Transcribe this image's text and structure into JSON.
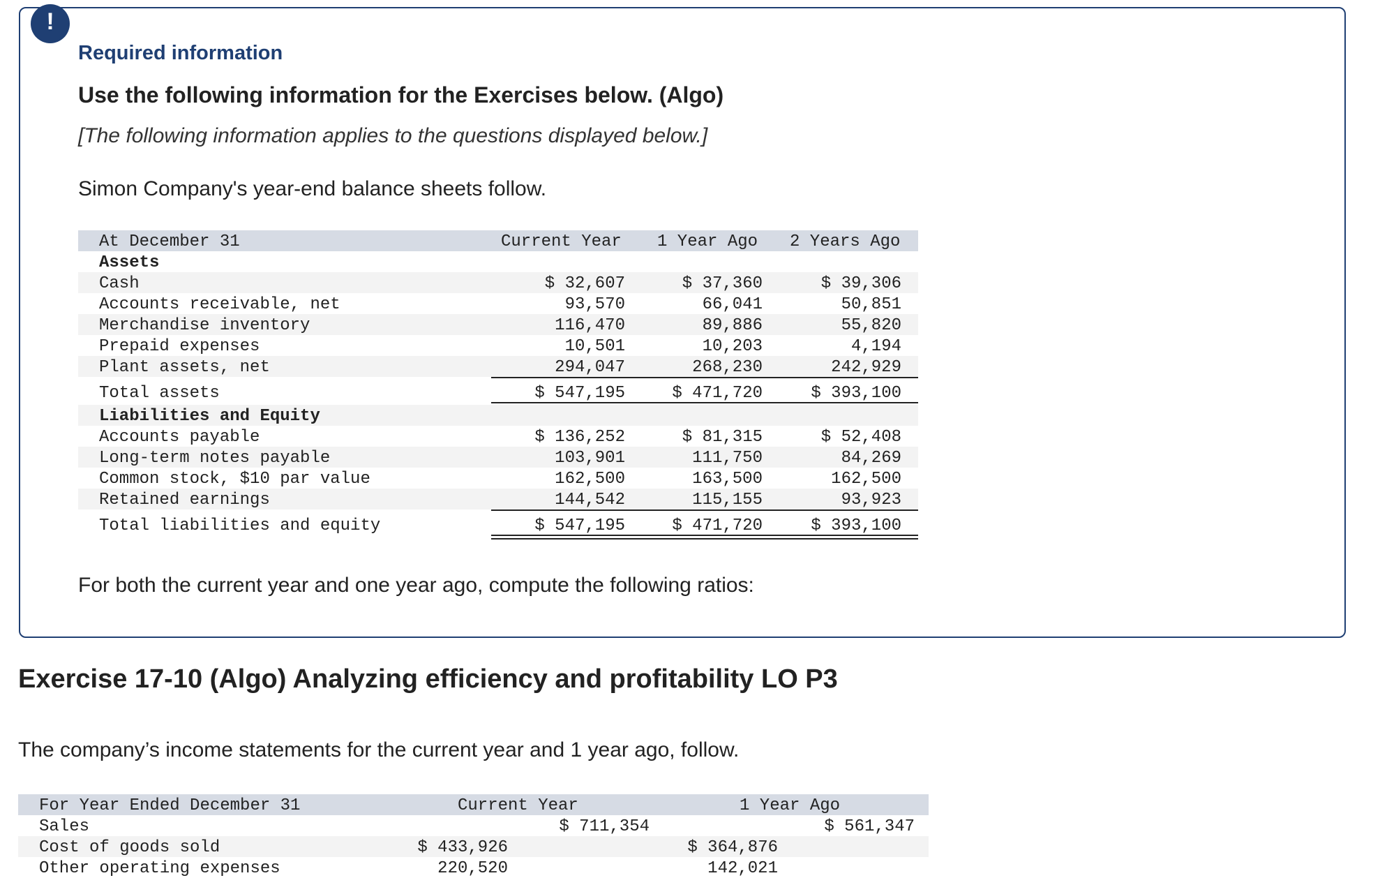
{
  "alert_symbol": "!",
  "required_info": "Required information",
  "use_following": "Use the following information for the Exercises below. (Algo)",
  "applies_note": "[The following information applies to the questions displayed below.]",
  "intro": "Simon Company's year-end balance sheets follow.",
  "balance_sheet": {
    "header": {
      "label": "At December 31",
      "col1": "Current Year",
      "col2": "1 Year Ago",
      "col3": "2 Years Ago"
    },
    "assets_heading": "Assets",
    "assets": [
      {
        "label": "Cash",
        "c1": "$ 32,607",
        "c2": "$ 37,360",
        "c3": "$ 39,306"
      },
      {
        "label": "Accounts receivable, net",
        "c1": "93,570",
        "c2": "66,041",
        "c3": "50,851"
      },
      {
        "label": "Merchandise inventory",
        "c1": "116,470",
        "c2": "89,886",
        "c3": "55,820"
      },
      {
        "label": "Prepaid expenses",
        "c1": "10,501",
        "c2": "10,203",
        "c3": "4,194"
      },
      {
        "label": "Plant assets, net",
        "c1": "294,047",
        "c2": "268,230",
        "c3": "242,929"
      }
    ],
    "total_assets": {
      "label": "Total assets",
      "c1": "$ 547,195",
      "c2": "$ 471,720",
      "c3": "$ 393,100"
    },
    "liab_heading": "Liabilities and Equity",
    "liabilities": [
      {
        "label": "Accounts payable",
        "c1": "$ 136,252",
        "c2": "$ 81,315",
        "c3": "$ 52,408"
      },
      {
        "label": "Long-term notes payable",
        "c1": "103,901",
        "c2": "111,750",
        "c3": "84,269"
      },
      {
        "label": "Common stock, $10 par value",
        "c1": "162,500",
        "c2": "163,500",
        "c3": "162,500"
      },
      {
        "label": "Retained earnings",
        "c1": "144,542",
        "c2": "115,155",
        "c3": "93,923"
      }
    ],
    "total_liab": {
      "label": "Total liabilities and equity",
      "c1": "$ 547,195",
      "c2": "$ 471,720",
      "c3": "$ 393,100"
    }
  },
  "ratios_text": "For both the current year and one year ago, compute the following ratios:",
  "exercise_title": "Exercise 17-10 (Algo) Analyzing efficiency and profitability LO P3",
  "income_intro": "The company’s income statements for the current year and 1 year ago, follow.",
  "income_statement": {
    "header": {
      "label": "For Year Ended December 31",
      "col1": "Current Year",
      "col2": "1 Year Ago"
    },
    "rows": [
      {
        "label": "Sales",
        "a1": "",
        "a2": "$ 711,354",
        "b1": "",
        "b2": "$ 561,347"
      },
      {
        "label": "Cost of goods sold",
        "a1": "$ 433,926",
        "a2": "",
        "b1": "$ 364,876",
        "b2": ""
      },
      {
        "label": "Other operating expenses",
        "a1": "220,520",
        "a2": "",
        "b1": "142,021",
        "b2": ""
      }
    ]
  }
}
